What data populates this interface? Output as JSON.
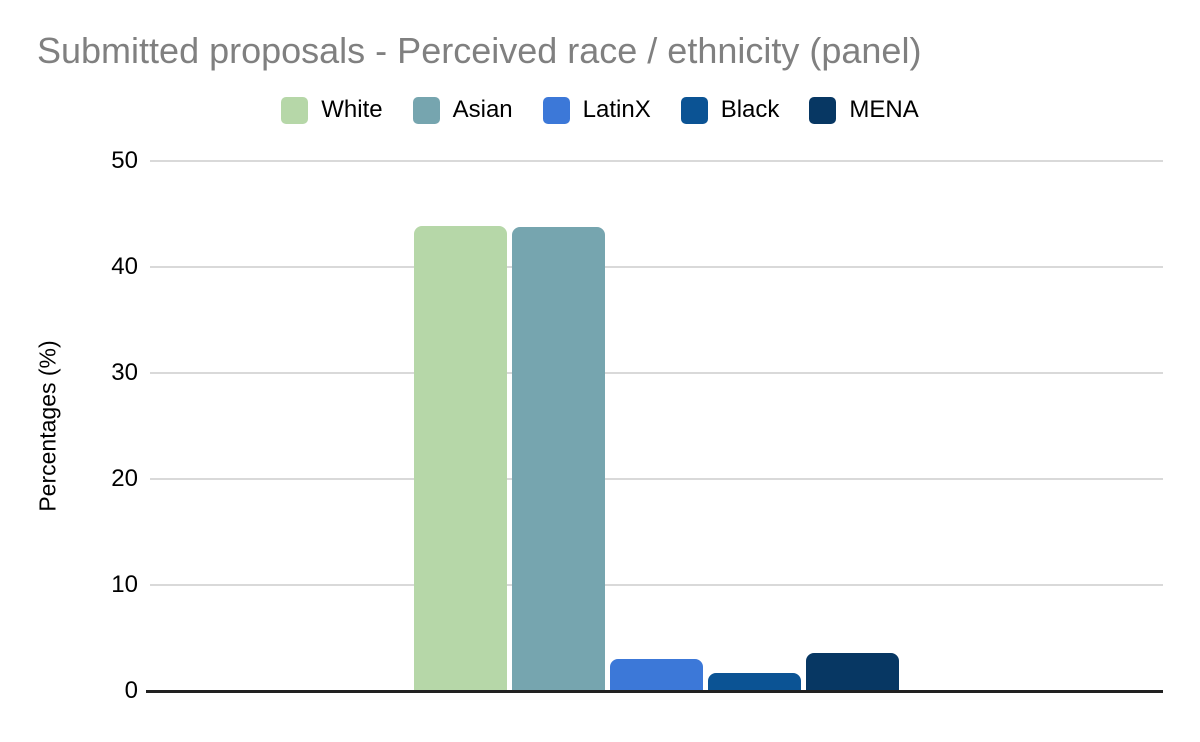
{
  "chart_data": {
    "type": "bar",
    "title": "Submitted proposals - Perceived race / ethnicity (panel)",
    "xlabel": "",
    "ylabel": "Percentages (%)",
    "ylim": [
      0,
      50
    ],
    "yticks": [
      0,
      10,
      20,
      30,
      40,
      50
    ],
    "grid": true,
    "legend_position": "top-center",
    "categories": [
      ""
    ],
    "series": [
      {
        "name": "White",
        "color": "#b6d7a8",
        "values": [
          43.9
        ]
      },
      {
        "name": "Asian",
        "color": "#76a5af",
        "values": [
          43.8
        ]
      },
      {
        "name": "LatinX",
        "color": "#3c78d8",
        "values": [
          3.0
        ]
      },
      {
        "name": "Black",
        "color": "#0b5394",
        "values": [
          1.7
        ]
      },
      {
        "name": "MENA",
        "color": "#073763",
        "values": [
          3.6
        ]
      }
    ]
  },
  "colors": {
    "title": "#808080",
    "gridline": "#d9d9d9",
    "zero_axis": "#212121",
    "label": "#000000",
    "background": "#ffffff"
  }
}
